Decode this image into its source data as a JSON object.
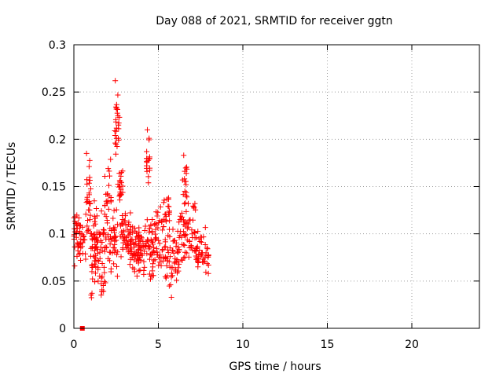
{
  "chart_data": {
    "type": "scatter",
    "title": "Day 088 of 2021, SRMTID for receiver ggtn",
    "xlabel": "GPS time / hours",
    "ylabel": "SRMTID / TECUs",
    "xlim": [
      0,
      24
    ],
    "ylim": [
      0,
      0.3
    ],
    "xticks": [
      0,
      5,
      10,
      15,
      20
    ],
    "xtick_labels": [
      "0",
      "5",
      "10",
      "15",
      "20"
    ],
    "yticks": [
      0,
      0.05,
      0.1,
      0.15,
      0.2,
      0.25,
      0.3
    ],
    "ytick_labels": [
      "0",
      "0.05",
      "0.1",
      "0.15",
      "0.2",
      "0.25",
      "0.3"
    ],
    "grid": true,
    "marker": "plus",
    "colors": {
      "points": "#ff0000",
      "grid": "#a0a0a0",
      "axes": "#000000"
    },
    "square_marker_points": [
      {
        "x": 0.5,
        "y": 0.0
      }
    ],
    "clusters": [
      {
        "x0": 0.0,
        "x1": 0.4,
        "ymin": 0.06,
        "ymax": 0.13,
        "n": 30
      },
      {
        "x0": 0.3,
        "x1": 0.7,
        "ymin": 0.07,
        "ymax": 0.11,
        "n": 20
      },
      {
        "x0": 0.7,
        "x1": 1.0,
        "ymin": 0.08,
        "ymax": 0.185,
        "n": 30
      },
      {
        "x0": 1.0,
        "x1": 1.3,
        "ymin": 0.03,
        "ymax": 0.14,
        "n": 40
      },
      {
        "x0": 1.3,
        "x1": 1.8,
        "ymin": 0.04,
        "ymax": 0.15,
        "n": 40
      },
      {
        "x0": 1.6,
        "x1": 1.9,
        "ymin": 0.028,
        "ymax": 0.06,
        "n": 10
      },
      {
        "x0": 1.8,
        "x1": 2.2,
        "ymin": 0.05,
        "ymax": 0.2,
        "n": 40
      },
      {
        "x0": 2.2,
        "x1": 2.6,
        "ymin": 0.04,
        "ymax": 0.14,
        "n": 30
      },
      {
        "x0": 2.4,
        "x1": 2.7,
        "ymin": 0.18,
        "ymax": 0.25,
        "n": 25
      },
      {
        "x0": 2.6,
        "x1": 2.9,
        "ymin": 0.12,
        "ymax": 0.17,
        "n": 20
      },
      {
        "x0": 2.7,
        "x1": 3.4,
        "ymin": 0.07,
        "ymax": 0.13,
        "n": 45
      },
      {
        "x0": 3.3,
        "x1": 3.9,
        "ymin": 0.05,
        "ymax": 0.11,
        "n": 45
      },
      {
        "x0": 3.8,
        "x1": 4.4,
        "ymin": 0.05,
        "ymax": 0.12,
        "n": 45
      },
      {
        "x0": 4.3,
        "x1": 4.5,
        "ymin": 0.15,
        "ymax": 0.21,
        "n": 18
      },
      {
        "x0": 4.4,
        "x1": 4.9,
        "ymin": 0.04,
        "ymax": 0.13,
        "n": 40
      },
      {
        "x0": 4.8,
        "x1": 5.5,
        "ymin": 0.05,
        "ymax": 0.14,
        "n": 45
      },
      {
        "x0": 5.3,
        "x1": 5.7,
        "ymin": 0.1,
        "ymax": 0.15,
        "n": 15
      },
      {
        "x0": 5.5,
        "x1": 6.2,
        "ymin": 0.03,
        "ymax": 0.11,
        "n": 45
      },
      {
        "x0": 6.2,
        "x1": 6.6,
        "ymin": 0.05,
        "ymax": 0.14,
        "n": 30
      },
      {
        "x0": 6.4,
        "x1": 6.7,
        "ymin": 0.13,
        "ymax": 0.18,
        "n": 15
      },
      {
        "x0": 6.6,
        "x1": 7.3,
        "ymin": 0.06,
        "ymax": 0.14,
        "n": 40
      },
      {
        "x0": 7.2,
        "x1": 8.0,
        "ymin": 0.05,
        "ymax": 0.11,
        "n": 45
      }
    ],
    "extra_points": [
      {
        "x": 2.45,
        "y": 0.262
      },
      {
        "x": 4.35,
        "y": 0.21
      },
      {
        "x": 6.5,
        "y": 0.183
      },
      {
        "x": 0.75,
        "y": 0.185
      }
    ]
  }
}
